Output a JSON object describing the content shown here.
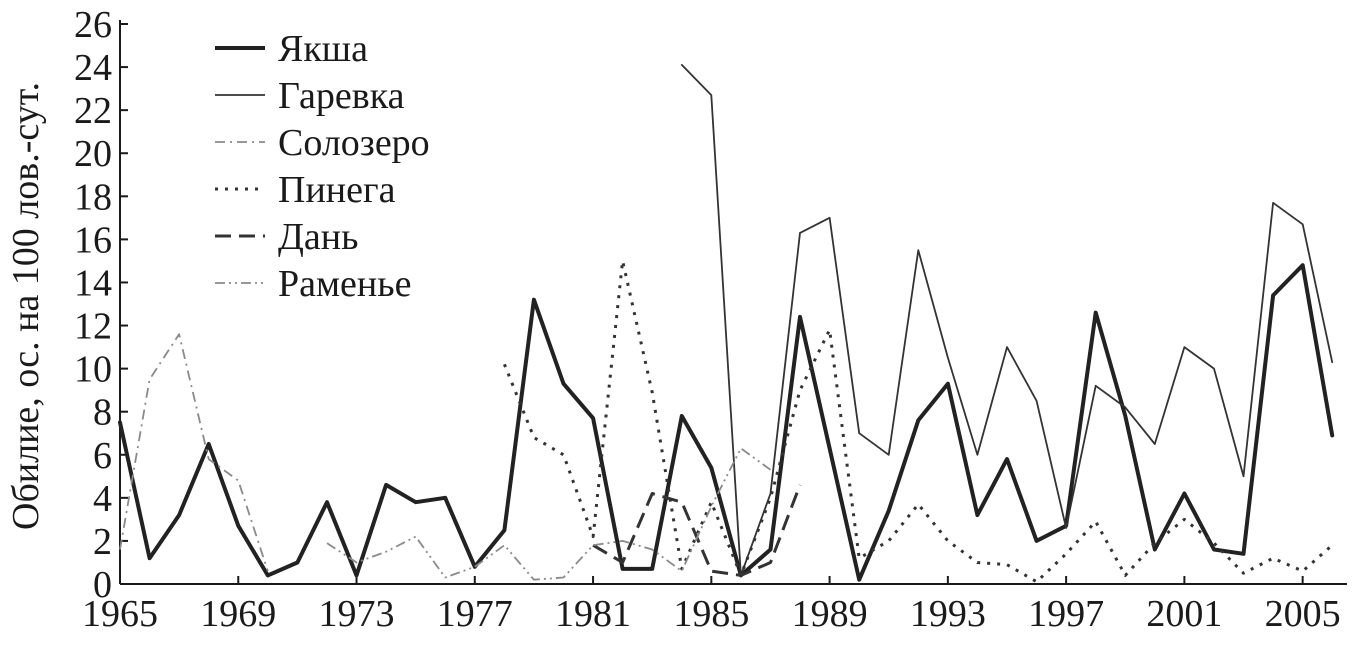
{
  "chart_data": {
    "type": "line",
    "ylabel": "Обилие, ос. на 100 лов.-сут.",
    "xlabel": "",
    "title": "",
    "xlim": [
      1965,
      2006.5
    ],
    "ylim": [
      0,
      26
    ],
    "x_ticks": [
      {
        "value": 1965,
        "label": "1965"
      },
      {
        "value": 1969,
        "label": "1969"
      },
      {
        "value": 1973,
        "label": "1973"
      },
      {
        "value": 1977,
        "label": "1977"
      },
      {
        "value": 1981,
        "label": "1981"
      },
      {
        "value": 1985,
        "label": "1985"
      },
      {
        "value": 1989,
        "label": "1989"
      },
      {
        "value": 1993,
        "label": "1993"
      },
      {
        "value": 1997,
        "label": "1997"
      },
      {
        "value": 2001,
        "label": "2001"
      },
      {
        "value": 2005,
        "label": "2005"
      }
    ],
    "y_ticks": [
      {
        "value": 0,
        "label": "0"
      },
      {
        "value": 2,
        "label": "2"
      },
      {
        "value": 4,
        "label": "4"
      },
      {
        "value": 6,
        "label": "6"
      },
      {
        "value": 8,
        "label": "8"
      },
      {
        "value": 10,
        "label": "10"
      },
      {
        "value": 12,
        "label": "12"
      },
      {
        "value": 14,
        "label": "14"
      },
      {
        "value": 16,
        "label": "16"
      },
      {
        "value": 18,
        "label": "18"
      },
      {
        "value": 20,
        "label": "20"
      },
      {
        "value": 22,
        "label": "22"
      },
      {
        "value": 24,
        "label": "24"
      },
      {
        "value": 26,
        "label": "26"
      }
    ],
    "grid": false,
    "legend_position": "top-left",
    "series": [
      {
        "name": "Якша",
        "style": "solid-thick",
        "color": "#222222",
        "points": [
          [
            1965,
            7.5
          ],
          [
            1966,
            1.2
          ],
          [
            1967,
            3.2
          ],
          [
            1968,
            6.5
          ],
          [
            1969,
            2.7
          ],
          [
            1970,
            0.4
          ],
          [
            1971,
            1.0
          ],
          [
            1972,
            3.8
          ],
          [
            1973,
            0.4
          ],
          [
            1974,
            4.6
          ],
          [
            1975,
            3.8
          ],
          [
            1976,
            4.0
          ],
          [
            1977,
            0.8
          ],
          [
            1978,
            2.5
          ],
          [
            1979,
            13.2
          ],
          [
            1980,
            9.3
          ],
          [
            1981,
            7.7
          ],
          [
            1982,
            0.7
          ],
          [
            1983,
            0.7
          ],
          [
            1984,
            7.8
          ],
          [
            1985,
            5.4
          ],
          [
            1986,
            0.4
          ],
          [
            1987,
            1.6
          ],
          [
            1988,
            12.4
          ],
          [
            1989,
            6.3
          ],
          [
            1990,
            0.2
          ],
          [
            1991,
            3.4
          ],
          [
            1992,
            7.6
          ],
          [
            1993,
            9.3
          ],
          [
            1994,
            3.2
          ],
          [
            1995,
            5.8
          ],
          [
            1996,
            2.0
          ],
          [
            1997,
            2.7
          ],
          [
            1998,
            12.6
          ],
          [
            1999,
            7.8
          ],
          [
            2000,
            1.6
          ],
          [
            2001,
            4.2
          ],
          [
            2002,
            1.6
          ],
          [
            2003,
            1.4
          ],
          [
            2004,
            13.4
          ],
          [
            2005,
            14.8
          ],
          [
            2006,
            6.9
          ]
        ]
      },
      {
        "name": "Гаревка",
        "style": "solid-thin",
        "color": "#333333",
        "points": [
          [
            1984,
            24.1
          ],
          [
            1985,
            22.7
          ],
          [
            1986,
            0.4
          ],
          [
            1987,
            4.2
          ],
          [
            1988,
            16.3
          ],
          [
            1989,
            17.0
          ],
          [
            1990,
            7.0
          ],
          [
            1991,
            6.0
          ],
          [
            1992,
            15.5
          ],
          [
            1993,
            10.5
          ],
          [
            1994,
            6.0
          ],
          [
            1995,
            11.0
          ],
          [
            1996,
            8.5
          ],
          [
            1997,
            2.6
          ],
          [
            1998,
            9.2
          ],
          [
            1999,
            8.2
          ],
          [
            2000,
            6.5
          ],
          [
            2001,
            11.0
          ],
          [
            2002,
            10.0
          ],
          [
            2003,
            5.0
          ],
          [
            2004,
            17.7
          ],
          [
            2005,
            16.7
          ],
          [
            2006,
            10.3
          ]
        ]
      },
      {
        "name": "Солозеро",
        "style": "dash-dot",
        "color": "#8a8a8a",
        "points": [
          [
            1965,
            1.6
          ],
          [
            1966,
            9.5
          ],
          [
            1967,
            11.6
          ],
          [
            1968,
            5.8
          ],
          [
            1969,
            4.8
          ],
          [
            1970,
            0.6
          ]
        ]
      },
      {
        "name": "Пинега",
        "style": "dotted",
        "color": "#333333",
        "points": [
          [
            1978,
            10.2
          ],
          [
            1979,
            6.8
          ],
          [
            1980,
            6.0
          ],
          [
            1981,
            2.2
          ],
          [
            1982,
            15.0
          ],
          [
            1983,
            8.9
          ],
          [
            1984,
            0.7
          ],
          [
            1985,
            3.8
          ],
          [
            1986,
            0.4
          ],
          [
            1987,
            4.0
          ],
          [
            1988,
            9.0
          ],
          [
            1989,
            11.8
          ],
          [
            1990,
            1.2
          ],
          [
            1991,
            2.0
          ],
          [
            1992,
            3.7
          ],
          [
            1993,
            2.0
          ],
          [
            1994,
            1.0
          ],
          [
            1995,
            0.9
          ],
          [
            1996,
            0.1
          ],
          [
            1997,
            1.4
          ],
          [
            1998,
            2.9
          ],
          [
            1999,
            0.4
          ],
          [
            2000,
            1.9
          ],
          [
            2001,
            3.0
          ],
          [
            2002,
            1.9
          ],
          [
            2003,
            0.5
          ],
          [
            2004,
            1.2
          ],
          [
            2005,
            0.6
          ],
          [
            2006,
            1.8
          ]
        ]
      },
      {
        "name": "Дань",
        "style": "dashed",
        "color": "#333333",
        "points": [
          [
            1981,
            1.8
          ],
          [
            1982,
            1.0
          ],
          [
            1983,
            4.2
          ],
          [
            1984,
            3.8
          ],
          [
            1985,
            0.6
          ],
          [
            1986,
            0.4
          ],
          [
            1987,
            1.0
          ],
          [
            1988,
            4.6
          ]
        ]
      },
      {
        "name": "Раменье",
        "style": "dash-dot-dot",
        "color": "#8a8a8a",
        "points": [
          [
            1972,
            1.9
          ],
          [
            1973,
            1.0
          ],
          [
            1974,
            1.5
          ],
          [
            1975,
            2.2
          ],
          [
            1976,
            0.3
          ],
          [
            1977,
            0.8
          ],
          [
            1978,
            1.8
          ],
          [
            1979,
            0.2
          ],
          [
            1980,
            0.3
          ],
          [
            1981,
            1.8
          ],
          [
            1982,
            2.0
          ],
          [
            1983,
            1.6
          ],
          [
            1984,
            0.6
          ],
          [
            1985,
            3.6
          ],
          [
            1986,
            6.3
          ],
          [
            1987,
            5.3
          ]
        ]
      }
    ]
  }
}
